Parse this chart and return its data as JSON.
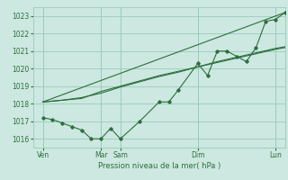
{
  "title": "",
  "xlabel": "Pression niveau de la mer( hPa )",
  "ylabel": "",
  "bg_color": "#cce8e0",
  "grid_color": "#99ccbb",
  "line_color": "#2d6e3e",
  "xlim": [
    0,
    13
  ],
  "ylim": [
    1015.5,
    1023.5
  ],
  "yticks": [
    1016,
    1017,
    1018,
    1019,
    1020,
    1021,
    1022,
    1023
  ],
  "x_day_positions": [
    0.5,
    3.5,
    4.5,
    8.5,
    12.5
  ],
  "x_day_labels": [
    "Ven",
    "Mar",
    "Sam",
    "Dim",
    "Lun"
  ],
  "vline_positions": [
    0.5,
    3.5,
    4.5,
    8.5,
    12.5
  ],
  "series1": {
    "x": [
      0.5,
      1.0,
      1.5,
      2.0,
      2.5,
      3.0,
      3.5,
      4.0,
      4.5,
      5.5,
      6.5,
      7.0,
      7.5,
      8.5,
      9.0,
      9.5,
      10.0,
      10.5,
      11.0,
      11.5,
      12.0,
      12.5,
      13.0
    ],
    "y": [
      1017.2,
      1017.1,
      1016.9,
      1016.7,
      1016.5,
      1016.0,
      1016.0,
      1016.6,
      1016.0,
      1017.0,
      1018.1,
      1018.1,
      1018.8,
      1020.3,
      1019.6,
      1021.0,
      1021.0,
      1020.7,
      1020.4,
      1021.2,
      1022.7,
      1022.8,
      1023.2
    ]
  },
  "series2": {
    "x": [
      0.5,
      1.5,
      2.5,
      3.5,
      4.5,
      5.5,
      6.5,
      7.5,
      8.5,
      9.5,
      10.5,
      11.5,
      12.5,
      13.0
    ],
    "y": [
      1018.1,
      1018.2,
      1018.3,
      1018.7,
      1019.0,
      1019.3,
      1019.6,
      1019.85,
      1020.1,
      1020.4,
      1020.65,
      1020.9,
      1021.15,
      1021.25
    ]
  },
  "series3": {
    "x": [
      0.5,
      1.5,
      2.5,
      3.5,
      4.5,
      5.5,
      6.5,
      7.5,
      8.5,
      9.5,
      10.5,
      11.5,
      12.5,
      13.0
    ],
    "y": [
      1018.1,
      1018.2,
      1018.35,
      1018.6,
      1018.95,
      1019.25,
      1019.55,
      1019.8,
      1020.1,
      1020.35,
      1020.6,
      1020.85,
      1021.1,
      1021.2
    ]
  },
  "series4": {
    "x": [
      0.5,
      13.0
    ],
    "y": [
      1018.1,
      1023.2
    ]
  }
}
